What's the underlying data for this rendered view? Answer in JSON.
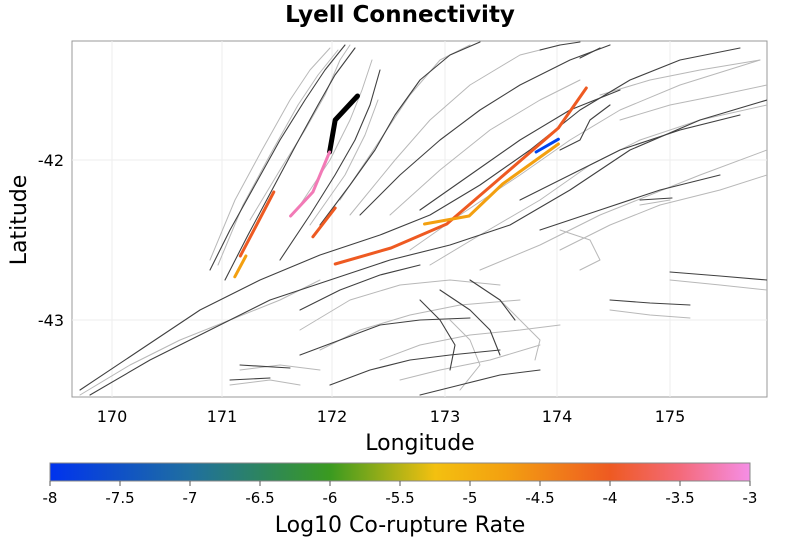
{
  "title": "Lyell Connectivity",
  "map": {
    "xlabel": "Longitude",
    "ylabel": "Latitude",
    "xlim": [
      169.7,
      175.6
    ],
    "ylim": [
      -43.5,
      -41.25
    ],
    "xticks": [
      "170",
      "171",
      "172",
      "173",
      "174",
      "175"
    ],
    "yticks": [
      "-42",
      "-43"
    ]
  },
  "colorbar": {
    "label": "Log10 Co-rupture Rate",
    "range": [
      -8,
      -3
    ],
    "ticks": [
      "-8",
      "-7.5",
      "-7",
      "-6.5",
      "-6",
      "-5.5",
      "-5",
      "-4.5",
      "-4",
      "-3.5",
      "-3"
    ],
    "colors": [
      "#0033ee",
      "#1f6fa0",
      "#3a9a20",
      "#f3c010",
      "#f3a010",
      "#ee5a22",
      "#f46a7a",
      "#f58ee6"
    ]
  },
  "chart_data": {
    "type": "scatter",
    "title": "Lyell Connectivity",
    "xlabel": "Longitude",
    "ylabel": "Latitude",
    "color_label": "Log10 Co-rupture Rate",
    "color_range": [
      -8,
      -3
    ],
    "segments": [
      {
        "rate": -3.0,
        "color": "#000000",
        "points": [
          [
            172.2,
            -41.6
          ],
          [
            172.0,
            -41.75
          ],
          [
            171.95,
            -41.95
          ]
        ]
      },
      {
        "rate": -3.4,
        "color": "#f27ab6",
        "points": [
          [
            171.95,
            -41.95
          ],
          [
            171.8,
            -42.2
          ],
          [
            171.6,
            -42.35
          ]
        ]
      },
      {
        "rate": -4.2,
        "color": "#ee5a22",
        "points": [
          [
            171.45,
            -42.2
          ],
          [
            171.3,
            -42.4
          ],
          [
            171.15,
            -42.6
          ]
        ]
      },
      {
        "rate": -5.0,
        "color": "#f3a010",
        "points": [
          [
            171.2,
            -42.6
          ],
          [
            171.1,
            -42.73
          ]
        ]
      },
      {
        "rate": -4.2,
        "color": "#ee5a22",
        "points": [
          [
            172.0,
            -42.3
          ],
          [
            171.8,
            -42.48
          ]
        ]
      },
      {
        "rate": -4.2,
        "color": "#ee5a22",
        "points": [
          [
            172.0,
            -42.65
          ],
          [
            172.5,
            -42.55
          ],
          [
            173.0,
            -42.4
          ],
          [
            173.5,
            -42.1
          ],
          [
            174.0,
            -41.8
          ],
          [
            174.25,
            -41.55
          ]
        ]
      },
      {
        "rate": -5.0,
        "color": "#f3a010",
        "points": [
          [
            172.8,
            -42.4
          ],
          [
            173.2,
            -42.35
          ],
          [
            173.5,
            -42.15
          ],
          [
            173.8,
            -42.0
          ],
          [
            174.0,
            -41.9
          ]
        ]
      },
      {
        "rate": -7.5,
        "color": "#0044ee",
        "points": [
          [
            173.8,
            -41.95
          ],
          [
            174.0,
            -41.87
          ]
        ]
      }
    ]
  }
}
